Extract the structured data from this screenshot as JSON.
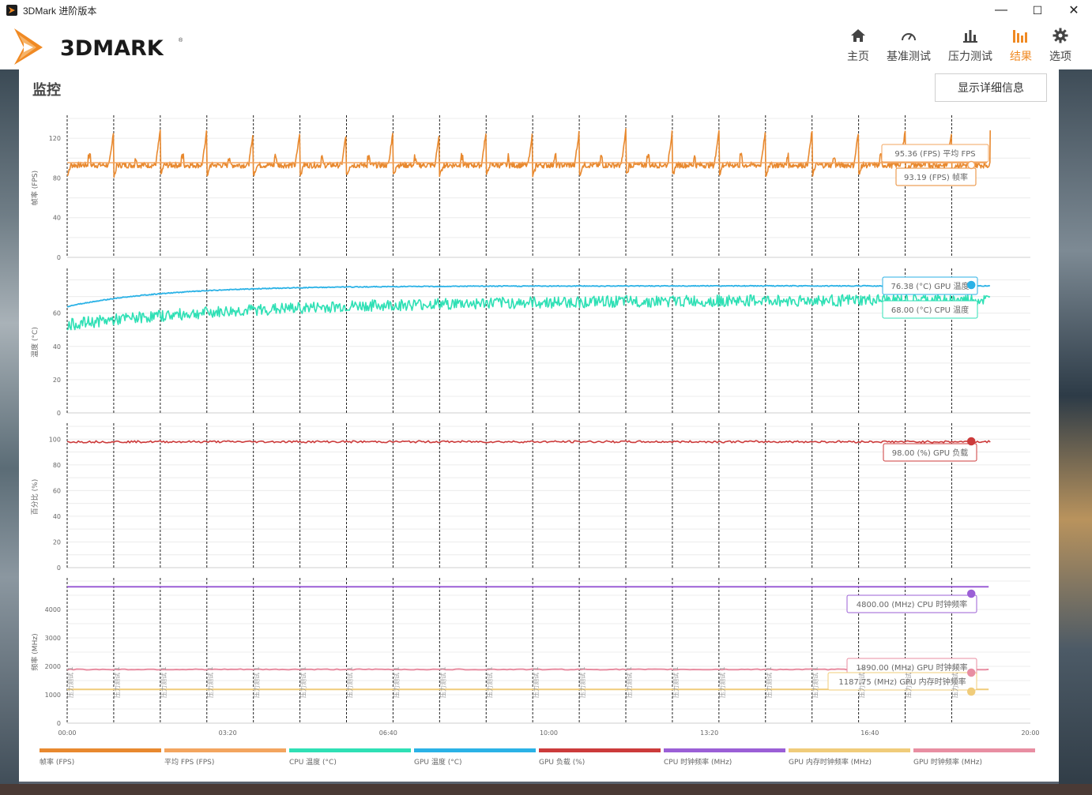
{
  "window": {
    "title": "3DMark 进阶版本",
    "minimize": "—",
    "maximize": "☐",
    "close": "✕"
  },
  "logo": {
    "text": "3DMARK",
    "reg": "®"
  },
  "nav": [
    {
      "label": "主页",
      "icon": "home-icon"
    },
    {
      "label": "基准测试",
      "icon": "speedometer-icon"
    },
    {
      "label": "压力测试",
      "icon": "bar-chart-icon"
    },
    {
      "label": "结果",
      "icon": "results-icon",
      "active": true
    },
    {
      "label": "选项",
      "icon": "gear-icon"
    }
  ],
  "panel": {
    "title": "监控",
    "detail_button": "显示详细信息"
  },
  "colors": {
    "fps": "#e8892f",
    "avg_fps": "#f3a55f",
    "cpu_temp": "#2fe0b5",
    "gpu_temp": "#2bb2e6",
    "gpu_load": "#cc3b3b",
    "cpu_clock": "#9b5fd6",
    "gpu_mem_clock": "#f0cc7a",
    "gpu_clock": "#e88ea2",
    "accent": "#f08a24"
  },
  "chart_data": [
    {
      "type": "line",
      "ylabel": "帧率 (FPS)",
      "yticks": [
        0,
        40,
        80,
        120
      ],
      "ylim": [
        0,
        140
      ],
      "series": [
        {
          "name": "帧率 (FPS)",
          "pattern": "periodic_spikes",
          "base": 93,
          "spike": 128,
          "low": 82
        },
        {
          "name": "平均 FPS (FPS)",
          "constant": 95.36
        }
      ],
      "labels": [
        {
          "text": "95.36 (FPS) 平均 FPS",
          "series": "avg_fps"
        },
        {
          "text": "93.19 (FPS) 帧率",
          "series": "fps"
        }
      ]
    },
    {
      "type": "line",
      "ylabel": "温度 (°C)",
      "yticks": [
        0,
        20,
        40,
        60
      ],
      "ylim": [
        0,
        85
      ],
      "series": [
        {
          "name": "GPU 温度 (°C)",
          "start": 64,
          "end": 76.38
        },
        {
          "name": "CPU 温度 (°C)",
          "start": 53,
          "end": 68.0
        }
      ],
      "labels": [
        {
          "text": "76.38 (°C) GPU 温度",
          "series": "gpu_temp"
        },
        {
          "text": "68.00 (°C) CPU 温度",
          "series": "cpu_temp"
        }
      ]
    },
    {
      "type": "line",
      "ylabel": "百分比 (%)",
      "yticks": [
        0,
        20,
        40,
        60,
        80,
        100
      ],
      "ylim": [
        0,
        110
      ],
      "series": [
        {
          "name": "GPU 负载 (%)",
          "constant": 98.0
        }
      ],
      "labels": [
        {
          "text": "98.00 (%) GPU 负载",
          "series": "gpu_load"
        }
      ]
    },
    {
      "type": "line",
      "ylabel": "频率 (MHz)",
      "yticks": [
        0,
        1000,
        2000,
        3000,
        4000
      ],
      "ylim": [
        0,
        5000
      ],
      "series": [
        {
          "name": "CPU 时钟频率 (MHz)",
          "constant": 4800.0
        },
        {
          "name": "GPU 时钟频率 (MHz)",
          "constant": 1890.0
        },
        {
          "name": "GPU 内存时钟频率 (MHz)",
          "constant": 1187.75
        }
      ],
      "labels": [
        {
          "text": "4800.00 (MHz) CPU 时钟频率",
          "series": "cpu_clock"
        },
        {
          "text": "1890.00 (MHz) GPU 时钟频率",
          "series": "gpu_clock"
        },
        {
          "text": "1187.75 (MHz) GPU 内存时钟频率",
          "series": "gpu_mem_clock"
        }
      ]
    }
  ],
  "x_axis": {
    "ticks": [
      "00:00",
      "03:20",
      "06:40",
      "10:00",
      "13:20",
      "16:40",
      "20:00"
    ],
    "xlim_seconds": [
      0,
      1200
    ],
    "end_seconds": 1150,
    "marker_label": "压力测试 1",
    "marker_seconds": [
      0,
      58,
      116,
      174,
      232,
      290,
      348,
      406,
      464,
      522,
      580,
      638,
      696,
      754,
      812,
      870,
      928,
      986,
      1044,
      1102
    ]
  },
  "legend": [
    {
      "label": "帧率 (FPS)",
      "color": "#e8892f"
    },
    {
      "label": "平均 FPS (FPS)",
      "color": "#f3a55f"
    },
    {
      "label": "CPU 温度 (°C)",
      "color": "#2fe0b5"
    },
    {
      "label": "GPU 温度 (°C)",
      "color": "#2bb2e6"
    },
    {
      "label": "GPU 负载 (%)",
      "color": "#cc3b3b"
    },
    {
      "label": "CPU 时钟频率 (MHz)",
      "color": "#9b5fd6"
    },
    {
      "label": "GPU 内存时钟频率 (MHz)",
      "color": "#f0cc7a"
    },
    {
      "label": "GPU 时钟频率 (MHz)",
      "color": "#e88ea2"
    }
  ]
}
